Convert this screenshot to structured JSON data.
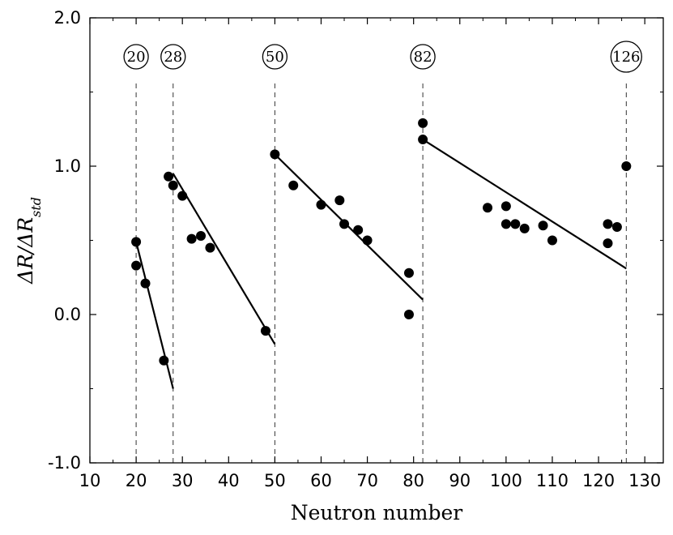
{
  "chart_data": {
    "type": "scatter",
    "xlabel": "Neutron number",
    "ylabel_main": "ΔR/ΔR",
    "ylabel_sub": "std",
    "xlim": [
      10,
      134
    ],
    "ylim": [
      -1.0,
      2.0
    ],
    "xticks": [
      "10",
      "20",
      "30",
      "40",
      "50",
      "60",
      "70",
      "80",
      "90",
      "100",
      "110",
      "120",
      "130"
    ],
    "yticks": [
      "2.0",
      "1.0",
      "0.0",
      "-1.0"
    ],
    "magic_numbers": [
      {
        "label": "20",
        "x": 20
      },
      {
        "label": "28",
        "x": 28
      },
      {
        "label": "50",
        "x": 50
      },
      {
        "label": "82",
        "x": 82
      },
      {
        "label": "126",
        "x": 126
      }
    ],
    "points": [
      {
        "x": 20,
        "y": 0.49
      },
      {
        "x": 20,
        "y": 0.33
      },
      {
        "x": 22,
        "y": 0.21
      },
      {
        "x": 26,
        "y": -0.31
      },
      {
        "x": 27,
        "y": 0.93
      },
      {
        "x": 28,
        "y": 0.87
      },
      {
        "x": 30,
        "y": 0.8
      },
      {
        "x": 32,
        "y": 0.51
      },
      {
        "x": 34,
        "y": 0.53
      },
      {
        "x": 36,
        "y": 0.45
      },
      {
        "x": 48,
        "y": -0.11
      },
      {
        "x": 50,
        "y": 1.08
      },
      {
        "x": 54,
        "y": 0.87
      },
      {
        "x": 60,
        "y": 0.74
      },
      {
        "x": 64,
        "y": 0.77
      },
      {
        "x": 65,
        "y": 0.61
      },
      {
        "x": 68,
        "y": 0.57
      },
      {
        "x": 70,
        "y": 0.5
      },
      {
        "x": 79,
        "y": 0.28
      },
      {
        "x": 79,
        "y": 0.0
      },
      {
        "x": 82,
        "y": 1.29
      },
      {
        "x": 82,
        "y": 1.18
      },
      {
        "x": 96,
        "y": 0.72
      },
      {
        "x": 100,
        "y": 0.73
      },
      {
        "x": 100,
        "y": 0.61
      },
      {
        "x": 102,
        "y": 0.61
      },
      {
        "x": 104,
        "y": 0.58
      },
      {
        "x": 108,
        "y": 0.6
      },
      {
        "x": 110,
        "y": 0.5
      },
      {
        "x": 122,
        "y": 0.61
      },
      {
        "x": 122,
        "y": 0.48
      },
      {
        "x": 124,
        "y": 0.59
      },
      {
        "x": 126,
        "y": 1.0
      }
    ],
    "fit_lines": [
      {
        "x": [
          20,
          28
        ],
        "y": [
          0.49,
          -0.5
        ]
      },
      {
        "x": [
          28,
          50
        ],
        "y": [
          0.95,
          -0.2
        ]
      },
      {
        "x": [
          50,
          82
        ],
        "y": [
          1.08,
          0.1
        ]
      },
      {
        "x": [
          82,
          126
        ],
        "y": [
          1.18,
          0.31
        ]
      }
    ],
    "grid": false
  }
}
